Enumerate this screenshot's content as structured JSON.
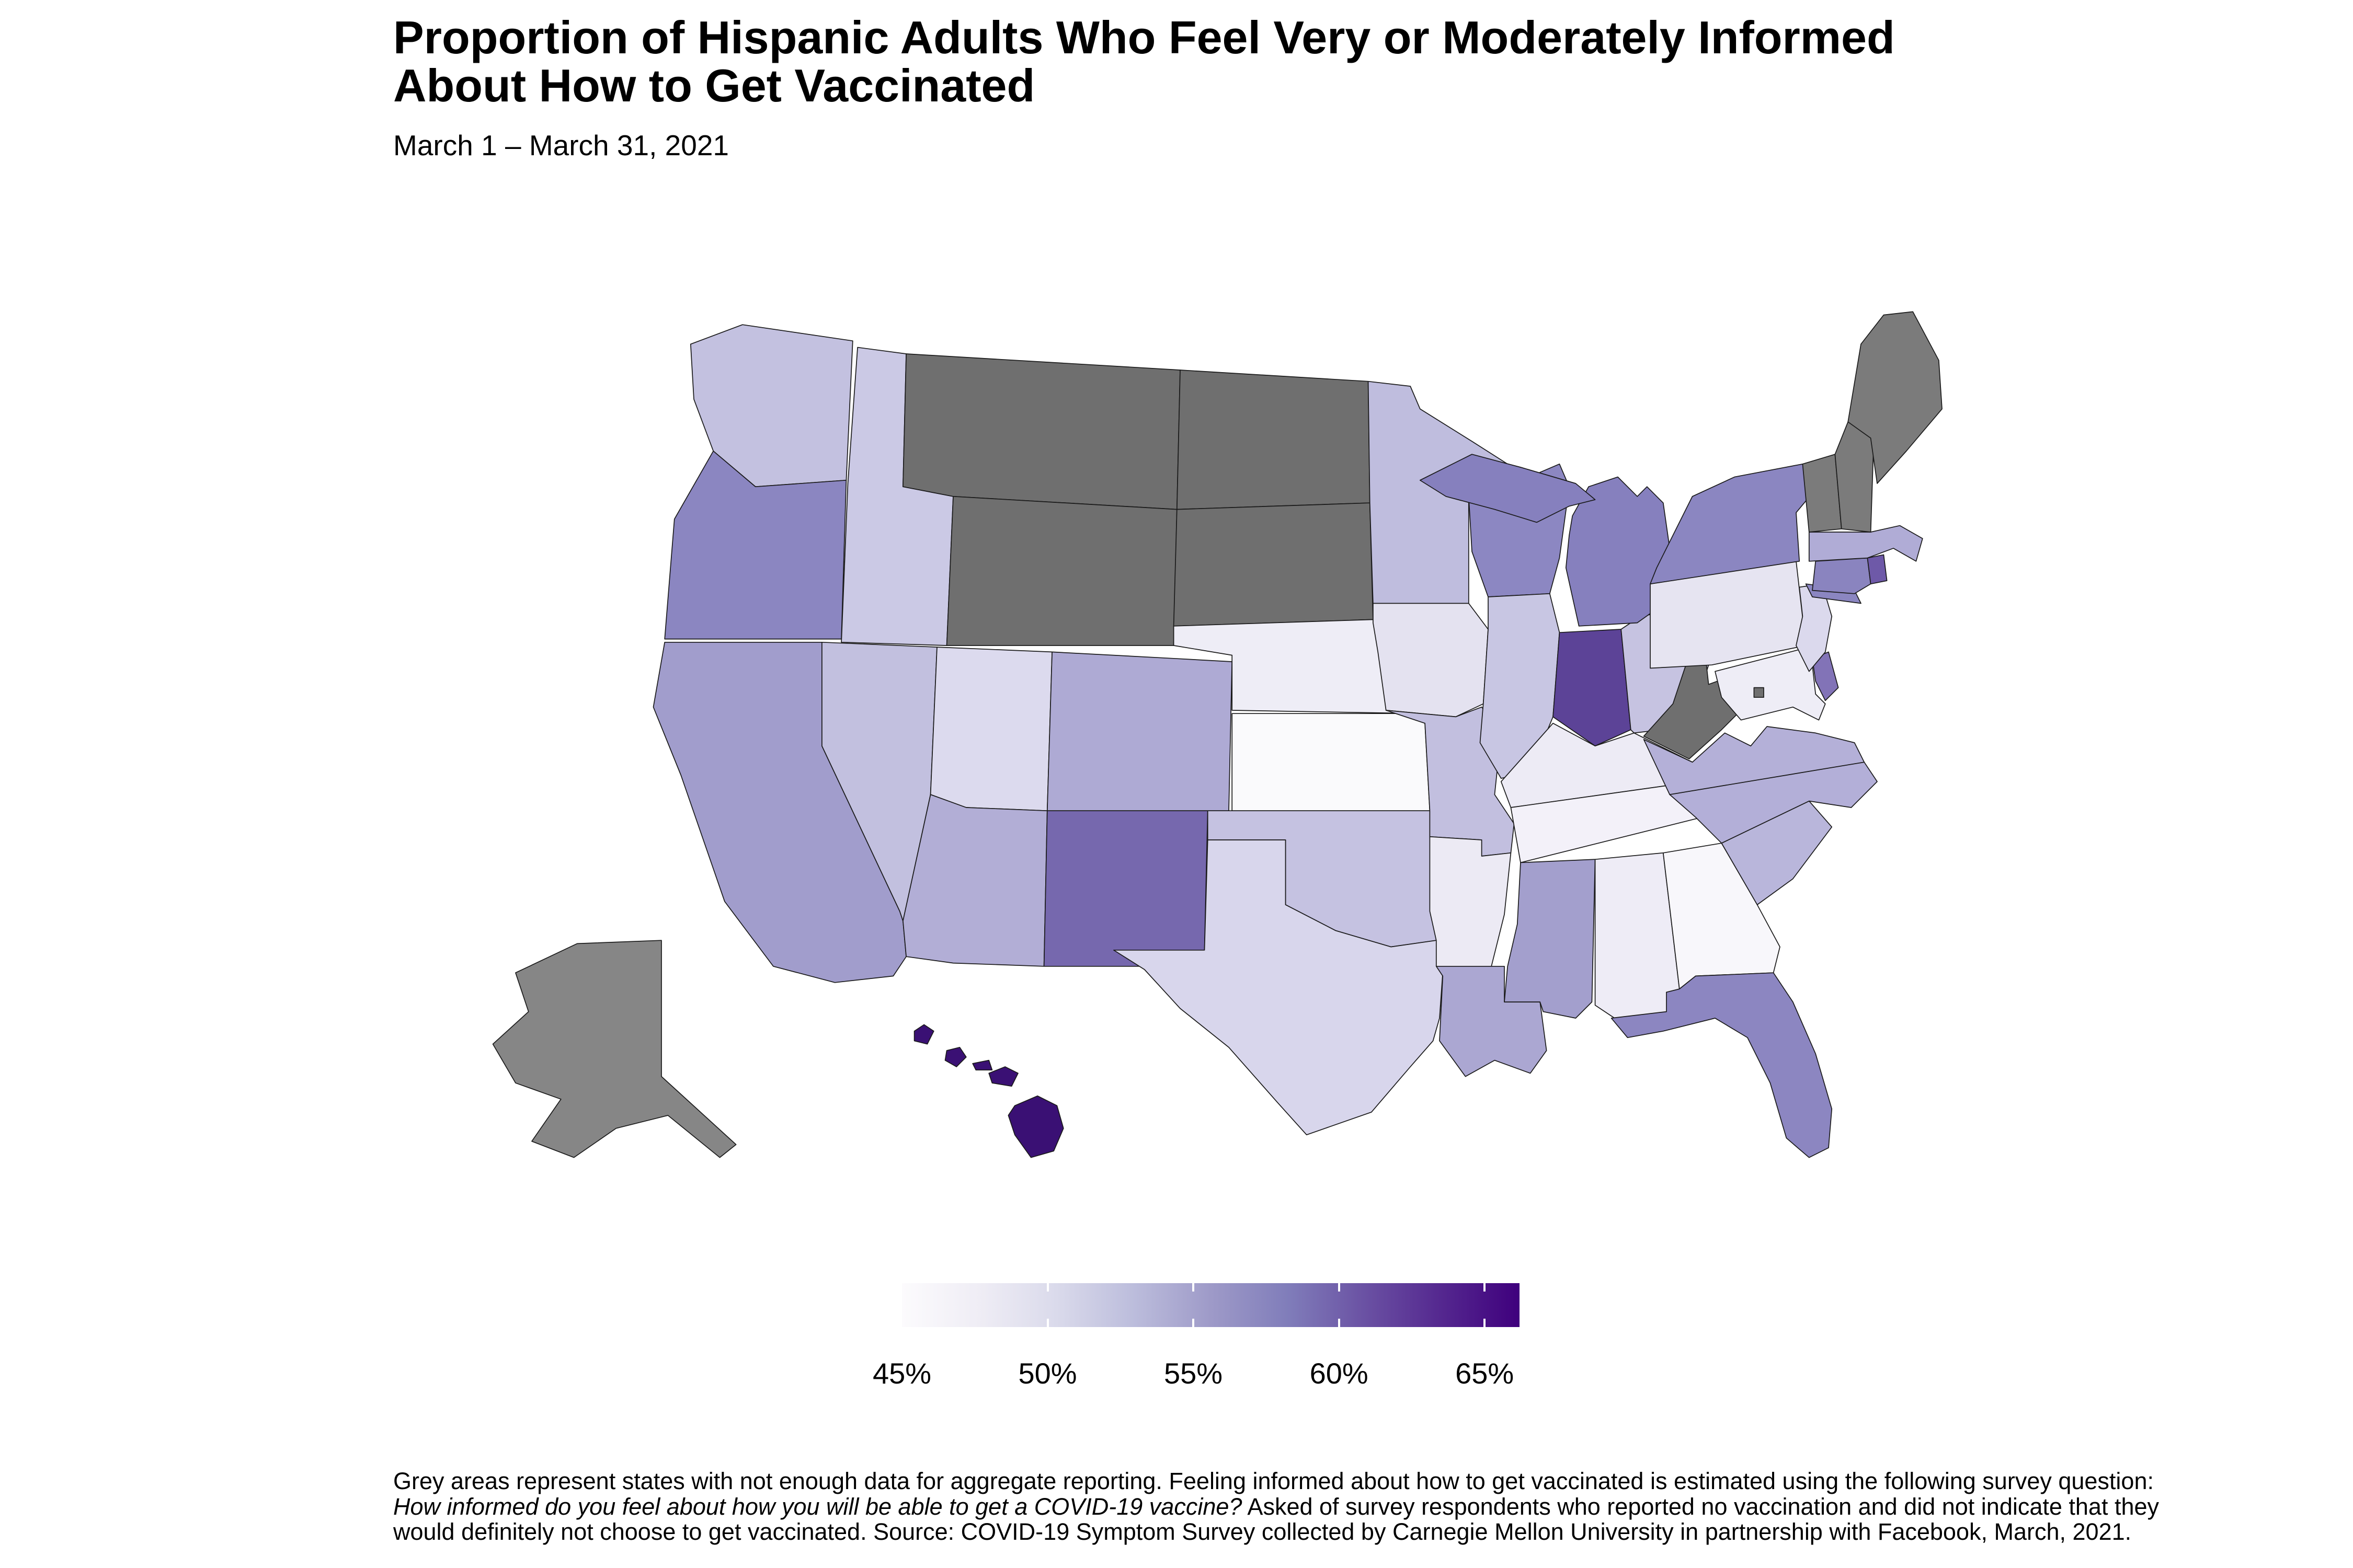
{
  "title": {
    "line1": "Proportion of Hispanic Adults Who Feel Very or Moderately Informed",
    "line2": "About How to Get Vaccinated"
  },
  "subtitle": "March 1 – March 31, 2021",
  "legend": {
    "labels": [
      "45%",
      "50%",
      "55%",
      "60%",
      "65%"
    ],
    "tick_values": [
      45,
      50,
      55,
      60,
      65
    ],
    "domain_min": 45,
    "domain_max": 66.2,
    "gradient_stops": [
      "#fcfbfd",
      "#efedf5",
      "#dadaeb",
      "#bcbddc",
      "#9e9ac8",
      "#807dba",
      "#6a51a3",
      "#54278f",
      "#3f007d"
    ]
  },
  "footnote": {
    "part1": "Grey areas represent states with not enough data for aggregate reporting. Feeling informed about how to get vaccinated is estimated using the following survey question: ",
    "italic": "How informed do you feel about how you will be able to get a COVID-19 vaccine?",
    "part2": " Asked of survey respondents who reported no vaccination and did not indicate that they would definitely not choose to get vaccinated. Source: COVID-19 Symptom Survey collected by Carnegie Mellon University in partnership with Facebook, March, 2021."
  },
  "chart_data": {
    "type": "choropleth_map",
    "region": "United States",
    "metric": "Percent of Hispanic adults who feel very or moderately informed about how to get vaccinated",
    "unit": "percent",
    "color_scale": "white-to-purple sequential (ColorBrewer Purples), 45% to ~65%+",
    "no_data_note": "Grey areas represent states with not enough data for aggregate reporting",
    "states": [
      {
        "abbr": "WA",
        "name": "Washington",
        "value": 52,
        "fill": "#c3c1e0",
        "no_data": false
      },
      {
        "abbr": "OR",
        "name": "Oregon",
        "value": 57,
        "fill": "#8b86c1",
        "no_data": false
      },
      {
        "abbr": "CA",
        "name": "California",
        "value": 55,
        "fill": "#a19dcc",
        "no_data": false
      },
      {
        "abbr": "NV",
        "name": "Nevada",
        "value": 51.5,
        "fill": "#c2c0df",
        "no_data": false
      },
      {
        "abbr": "ID",
        "name": "Idaho",
        "value": 50.5,
        "fill": "#cbc9e5",
        "no_data": false
      },
      {
        "abbr": "MT",
        "name": "Montana",
        "value": null,
        "fill": "#6f6f6f",
        "no_data": true
      },
      {
        "abbr": "WY",
        "name": "Wyoming",
        "value": null,
        "fill": "#6f6f6f",
        "no_data": true
      },
      {
        "abbr": "UT",
        "name": "Utah",
        "value": 49,
        "fill": "#dcdaee",
        "no_data": false
      },
      {
        "abbr": "CO",
        "name": "Colorado",
        "value": 54,
        "fill": "#aeaad4",
        "no_data": false
      },
      {
        "abbr": "AZ",
        "name": "Arizona",
        "value": 53.5,
        "fill": "#b2aed6",
        "no_data": false
      },
      {
        "abbr": "NM",
        "name": "New Mexico",
        "value": 60,
        "fill": "#7668ae",
        "no_data": false
      },
      {
        "abbr": "ND",
        "name": "North Dakota",
        "value": null,
        "fill": "#6f6f6f",
        "no_data": true
      },
      {
        "abbr": "SD",
        "name": "South Dakota",
        "value": null,
        "fill": "#6f6f6f",
        "no_data": true
      },
      {
        "abbr": "NE",
        "name": "Nebraska",
        "value": 46,
        "fill": "#eeedf6",
        "no_data": false
      },
      {
        "abbr": "KS",
        "name": "Kansas",
        "value": 44.5,
        "fill": "#fafafc",
        "no_data": false
      },
      {
        "abbr": "OK",
        "name": "Oklahoma",
        "value": 51,
        "fill": "#c5c2e1",
        "no_data": false
      },
      {
        "abbr": "TX",
        "name": "Texas",
        "value": 48.5,
        "fill": "#d8d6ec",
        "no_data": false
      },
      {
        "abbr": "MN",
        "name": "Minnesota",
        "value": 52,
        "fill": "#bfbdde",
        "no_data": false
      },
      {
        "abbr": "IA",
        "name": "Iowa",
        "value": 47,
        "fill": "#e4e2f0",
        "no_data": false
      },
      {
        "abbr": "MO",
        "name": "Missouri",
        "value": 51.5,
        "fill": "#c2bfdf",
        "no_data": false
      },
      {
        "abbr": "AR",
        "name": "Arkansas",
        "value": 46.5,
        "fill": "#eceaf4",
        "no_data": false
      },
      {
        "abbr": "LA",
        "name": "Louisiana",
        "value": 54,
        "fill": "#aba7d2",
        "no_data": false
      },
      {
        "abbr": "WI",
        "name": "Wisconsin",
        "value": 57,
        "fill": "#8c87c2",
        "no_data": false
      },
      {
        "abbr": "MI",
        "name": "Michigan",
        "value": 57.5,
        "fill": "#8680be",
        "no_data": false
      },
      {
        "abbr": "IL",
        "name": "Illinois",
        "value": 50.5,
        "fill": "#c8c6e3",
        "no_data": false
      },
      {
        "abbr": "IN",
        "name": "Indiana",
        "value": 61.5,
        "fill": "#5c4397",
        "no_data": false
      },
      {
        "abbr": "OH",
        "name": "Ohio",
        "value": 51,
        "fill": "#c6c3e1",
        "no_data": false
      },
      {
        "abbr": "KY",
        "name": "Kentucky",
        "value": 46,
        "fill": "#edebf5",
        "no_data": false
      },
      {
        "abbr": "TN",
        "name": "Tennessee",
        "value": 45.5,
        "fill": "#f3f1f9",
        "no_data": false
      },
      {
        "abbr": "MS",
        "name": "Mississippi",
        "value": 55,
        "fill": "#a39fcd",
        "no_data": false
      },
      {
        "abbr": "AL",
        "name": "Alabama",
        "value": 46,
        "fill": "#eeecf6",
        "no_data": false
      },
      {
        "abbr": "GA",
        "name": "Georgia",
        "value": 44.5,
        "fill": "#f8f7fb",
        "no_data": false
      },
      {
        "abbr": "FL",
        "name": "Florida",
        "value": 57,
        "fill": "#8c86c1",
        "no_data": false
      },
      {
        "abbr": "SC",
        "name": "South Carolina",
        "value": 53,
        "fill": "#b9b6db",
        "no_data": false
      },
      {
        "abbr": "NC",
        "name": "North Carolina",
        "value": 53.5,
        "fill": "#b3afd8",
        "no_data": false
      },
      {
        "abbr": "VA",
        "name": "Virginia",
        "value": 53.5,
        "fill": "#b4b0d8",
        "no_data": false
      },
      {
        "abbr": "WV",
        "name": "West Virginia",
        "value": null,
        "fill": "#6f6f6f",
        "no_data": true
      },
      {
        "abbr": "MD",
        "name": "Maryland",
        "value": 46,
        "fill": "#eeedf6",
        "no_data": false
      },
      {
        "abbr": "DE",
        "name": "Delaware",
        "value": 58,
        "fill": "#8273b7",
        "no_data": false
      },
      {
        "abbr": "DC",
        "name": "District of Columbia",
        "value": null,
        "fill": "#6f6f6f",
        "no_data": true
      },
      {
        "abbr": "NJ",
        "name": "New Jersey",
        "value": 48,
        "fill": "#dbd9ed",
        "no_data": false
      },
      {
        "abbr": "PA",
        "name": "Pennsylvania",
        "value": 47,
        "fill": "#e6e4f1",
        "no_data": false
      },
      {
        "abbr": "NY",
        "name": "New York",
        "value": 57,
        "fill": "#8b86c1",
        "no_data": false
      },
      {
        "abbr": "CT",
        "name": "Connecticut",
        "value": 57,
        "fill": "#8a84bf",
        "no_data": false
      },
      {
        "abbr": "RI",
        "name": "Rhode Island",
        "value": 60,
        "fill": "#6e59a8",
        "no_data": false
      },
      {
        "abbr": "MA",
        "name": "Massachusetts",
        "value": 53.5,
        "fill": "#b0acd6",
        "no_data": false
      },
      {
        "abbr": "VT",
        "name": "Vermont",
        "value": null,
        "fill": "#7b7b7b",
        "no_data": true
      },
      {
        "abbr": "NH",
        "name": "New Hampshire",
        "value": null,
        "fill": "#7b7b7b",
        "no_data": true
      },
      {
        "abbr": "ME",
        "name": "Maine",
        "value": null,
        "fill": "#7b7b7b",
        "no_data": true
      },
      {
        "abbr": "AK",
        "name": "Alaska",
        "value": null,
        "fill": "#868686",
        "no_data": true
      },
      {
        "abbr": "HI",
        "name": "Hawaii",
        "value": 66,
        "fill": "#3a1074",
        "no_data": false
      }
    ]
  }
}
